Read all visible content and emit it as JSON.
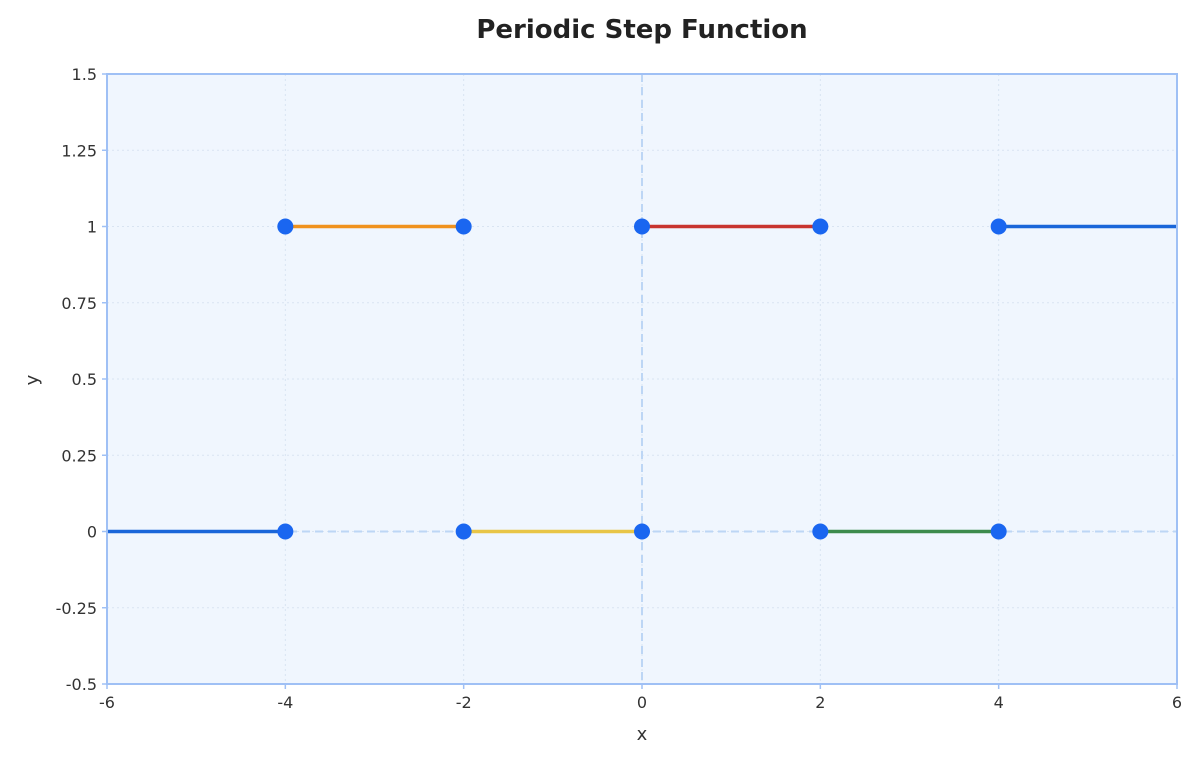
{
  "chart_data": {
    "type": "line",
    "title": "Periodic Step Function",
    "xlabel": "x",
    "ylabel": "y",
    "xlim": [
      -6,
      6
    ],
    "ylim": [
      -0.5,
      1.5
    ],
    "xticks": [
      -6,
      -4,
      -2,
      0,
      2,
      4,
      6
    ],
    "xtick_labels": [
      "-6",
      "-4",
      "-2",
      "0",
      "2",
      "4",
      "6"
    ],
    "yticks": [
      -0.5,
      -0.25,
      0,
      0.25,
      0.5,
      0.75,
      1,
      1.25,
      1.5
    ],
    "ytick_labels": [
      "-0.5",
      "-0.25",
      "0",
      "0.25",
      "0.5",
      "0.75",
      "1",
      "1.25",
      "1.5"
    ],
    "grid": true,
    "reference_lines": {
      "x": 0,
      "y": 0
    },
    "segments": [
      {
        "x": [
          -6,
          -4
        ],
        "y": [
          0,
          0
        ],
        "color": "#1a66d9"
      },
      {
        "x": [
          -4,
          -2
        ],
        "y": [
          1,
          1
        ],
        "color": "#f0921e"
      },
      {
        "x": [
          -2,
          0
        ],
        "y": [
          0,
          0
        ],
        "color": "#e8c547"
      },
      {
        "x": [
          0,
          2
        ],
        "y": [
          1,
          1
        ],
        "color": "#c8342f"
      },
      {
        "x": [
          2,
          4
        ],
        "y": [
          0,
          0
        ],
        "color": "#3d8b4d"
      },
      {
        "x": [
          4,
          6
        ],
        "y": [
          1,
          1
        ],
        "color": "#1a66d9"
      }
    ],
    "points": [
      {
        "x": -4,
        "y": 0
      },
      {
        "x": -4,
        "y": 1
      },
      {
        "x": -2,
        "y": 1
      },
      {
        "x": -2,
        "y": 0
      },
      {
        "x": 0,
        "y": 0
      },
      {
        "x": 0,
        "y": 1
      },
      {
        "x": 2,
        "y": 1
      },
      {
        "x": 2,
        "y": 0
      },
      {
        "x": 4,
        "y": 0
      },
      {
        "x": 4,
        "y": 1
      }
    ],
    "point_color": "#1a66f0",
    "plot_background": "#f0f6fe",
    "frame_color": "#9fc0f5",
    "reference_line_color": "#bdd6f5"
  }
}
